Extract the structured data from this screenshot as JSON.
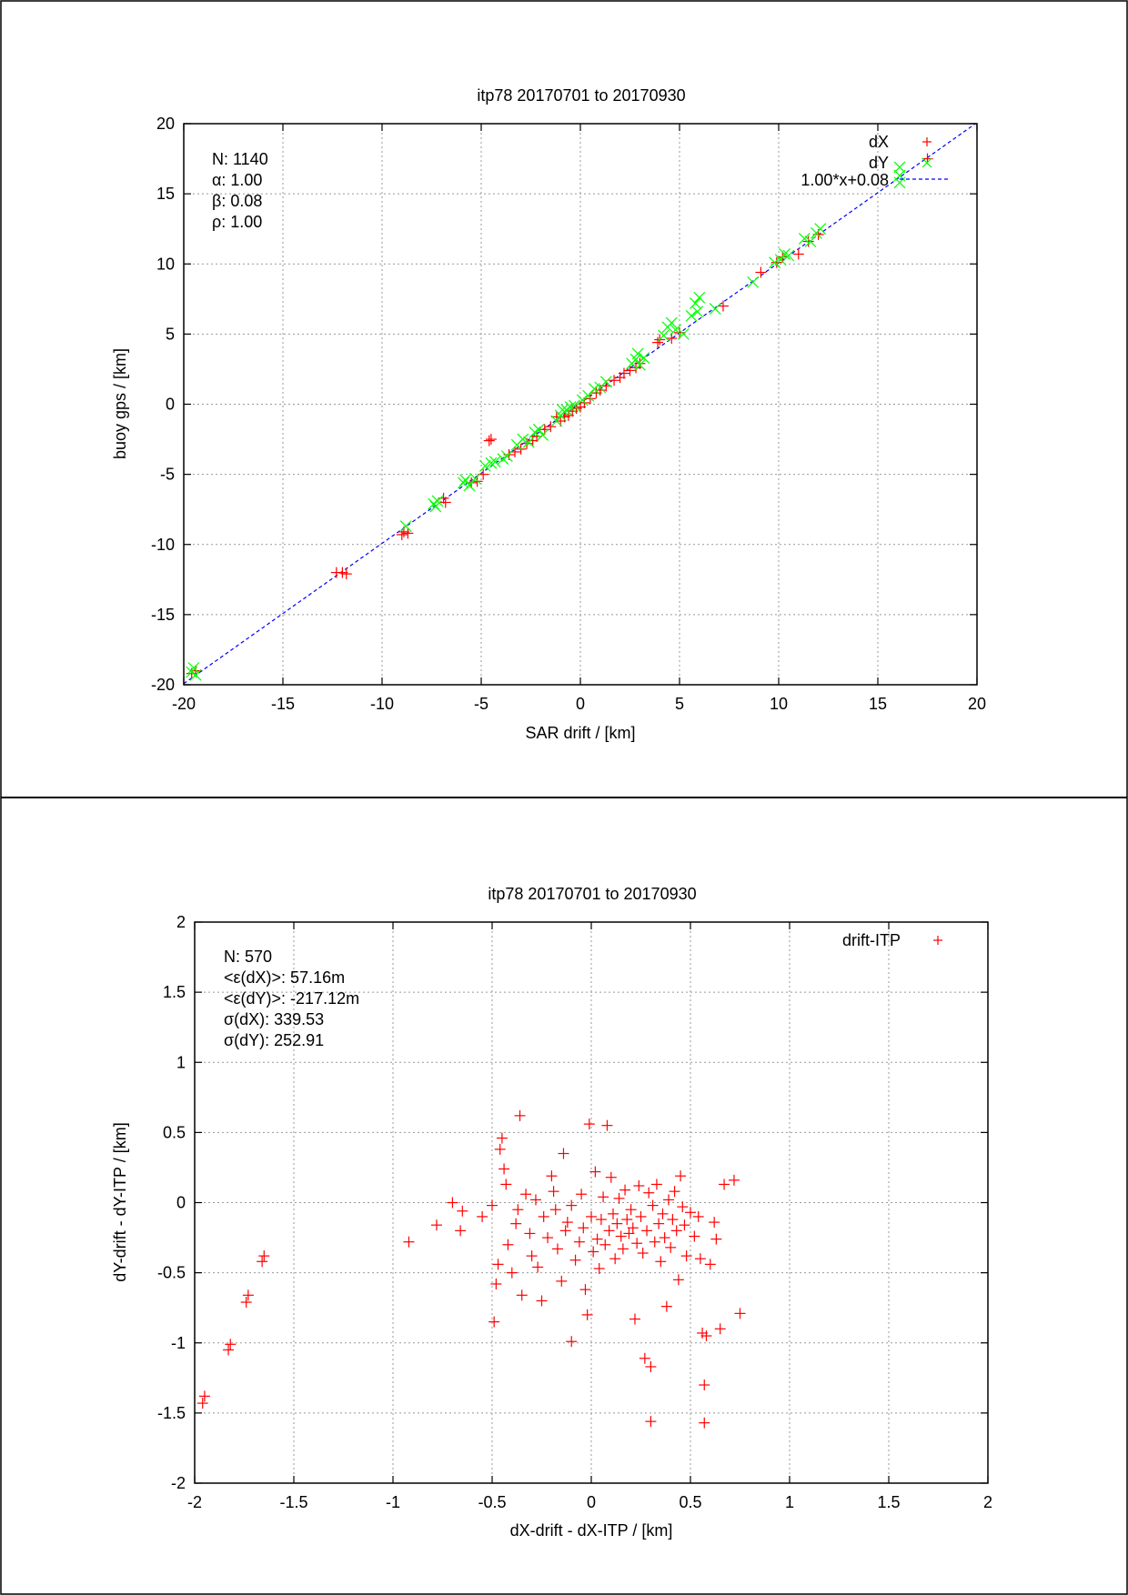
{
  "charts": [
    {
      "title": "itp78 20170701 to 20170930",
      "xlabel": "SAR drift / [km]",
      "ylabel": "buoy gps / [km]",
      "x_ticks": [
        "-20",
        "-15",
        "-10",
        "-5",
        "0",
        "5",
        "10",
        "15",
        "20"
      ],
      "y_ticks": [
        "-20",
        "-15",
        "-10",
        "-5",
        "0",
        "5",
        "10",
        "15",
        "20"
      ],
      "stats": [
        "N: 1140",
        "α: 1.00",
        "β: 0.08",
        "ρ: 1.00"
      ],
      "legend": [
        "dX",
        "dY",
        "1.00*x+0.08"
      ]
    },
    {
      "title": "itp78 20170701 to 20170930",
      "xlabel": "dX-drift - dX-ITP / [km]",
      "ylabel": "dY-drift - dY-ITP / [km]",
      "x_ticks": [
        "-2",
        "-1.5",
        "-1",
        "-0.5",
        "0",
        "0.5",
        "1",
        "1.5",
        "2"
      ],
      "y_ticks": [
        "-2",
        "-1.5",
        "-1",
        "-0.5",
        "0",
        "0.5",
        "1",
        "1.5",
        "2"
      ],
      "stats": [
        "N: 570",
        "<ε(dX)>:  57.16m",
        "<ε(dY)>: -217.12m",
        "σ(dX):  339.53",
        "σ(dY):  252.91"
      ],
      "legend": [
        "drift-ITP"
      ]
    }
  ],
  "chart_data": [
    {
      "type": "scatter",
      "title": "itp78 20170701 to 20170930",
      "xlabel": "SAR drift / [km]",
      "ylabel": "buoy gps / [km]",
      "xlim": [
        -20,
        20
      ],
      "ylim": [
        -20,
        20
      ],
      "grid": true,
      "legend_position": "top-right",
      "fit_line": {
        "name": "1.00*x+0.08",
        "slope": 1.0,
        "intercept": 0.08,
        "color": "#0000ff"
      },
      "series": [
        {
          "name": "dX",
          "marker": "+",
          "color": "#ff0000",
          "points": [
            [
              -19.6,
              -19.2
            ],
            [
              -19.4,
              -19.0
            ],
            [
              -12.3,
              -12.0
            ],
            [
              -12.0,
              -12.0
            ],
            [
              -11.8,
              -12.1
            ],
            [
              -9.0,
              -9.3
            ],
            [
              -8.9,
              -9.1
            ],
            [
              -8.7,
              -9.2
            ],
            [
              -6.9,
              -6.7
            ],
            [
              -6.8,
              -7.0
            ],
            [
              -5.5,
              -5.6
            ],
            [
              -5.2,
              -5.5
            ],
            [
              -4.9,
              -5.0
            ],
            [
              -4.6,
              -2.6
            ],
            [
              -4.5,
              -2.5
            ],
            [
              -3.6,
              -3.6
            ],
            [
              -3.3,
              -3.4
            ],
            [
              -3.0,
              -3.2
            ],
            [
              -2.7,
              -2.8
            ],
            [
              -2.4,
              -2.6
            ],
            [
              -2.2,
              -2.3
            ],
            [
              -1.8,
              -1.8
            ],
            [
              -1.5,
              -1.6
            ],
            [
              -1.2,
              -0.9
            ],
            [
              -1.0,
              -1.2
            ],
            [
              -0.8,
              -0.9
            ],
            [
              -0.6,
              -0.8
            ],
            [
              -0.4,
              -0.5
            ],
            [
              -0.2,
              -0.3
            ],
            [
              0.0,
              -0.2
            ],
            [
              0.2,
              0.1
            ],
            [
              0.5,
              0.4
            ],
            [
              0.8,
              0.8
            ],
            [
              1.0,
              1.0
            ],
            [
              1.3,
              1.3
            ],
            [
              1.7,
              1.7
            ],
            [
              2.0,
              1.9
            ],
            [
              2.2,
              2.2
            ],
            [
              2.5,
              2.4
            ],
            [
              2.8,
              2.6
            ],
            [
              3.0,
              2.9
            ],
            [
              3.9,
              4.4
            ],
            [
              4.0,
              4.6
            ],
            [
              4.6,
              4.7
            ],
            [
              5.0,
              5.1
            ],
            [
              7.2,
              7.0
            ],
            [
              9.1,
              9.4
            ],
            [
              9.9,
              10.1
            ],
            [
              10.2,
              10.5
            ],
            [
              11.0,
              10.7
            ],
            [
              11.5,
              11.6
            ],
            [
              12.0,
              12.1
            ],
            [
              17.5,
              17.5
            ]
          ]
        },
        {
          "name": "dY",
          "marker": "x",
          "color": "#00ff00",
          "points": [
            [
              -19.6,
              -19.1
            ],
            [
              -19.5,
              -18.8
            ],
            [
              -19.4,
              -19.3
            ],
            [
              -8.8,
              -8.7
            ],
            [
              -7.4,
              -7.1
            ],
            [
              -7.3,
              -7.3
            ],
            [
              -7.2,
              -6.9
            ],
            [
              -5.9,
              -5.6
            ],
            [
              -5.8,
              -5.4
            ],
            [
              -5.6,
              -5.8
            ],
            [
              -5.3,
              -5.3
            ],
            [
              -4.8,
              -4.4
            ],
            [
              -4.5,
              -4.2
            ],
            [
              -4.3,
              -4.1
            ],
            [
              -3.9,
              -3.9
            ],
            [
              -3.7,
              -3.7
            ],
            [
              -3.2,
              -2.9
            ],
            [
              -2.9,
              -2.5
            ],
            [
              -2.6,
              -2.7
            ],
            [
              -2.3,
              -2.0
            ],
            [
              -2.1,
              -1.8
            ],
            [
              -1.9,
              -2.2
            ],
            [
              -1.2,
              -1.2
            ],
            [
              -1.0,
              -0.8
            ],
            [
              -0.9,
              -0.4
            ],
            [
              -0.7,
              -0.4
            ],
            [
              -0.5,
              -0.2
            ],
            [
              -0.3,
              -0.1
            ],
            [
              0.1,
              0.3
            ],
            [
              0.4,
              0.6
            ],
            [
              0.7,
              1.1
            ],
            [
              1.0,
              1.2
            ],
            [
              1.3,
              1.6
            ],
            [
              2.6,
              2.9
            ],
            [
              2.8,
              3.2
            ],
            [
              2.9,
              3.6
            ],
            [
              3.0,
              2.8
            ],
            [
              3.2,
              3.3
            ],
            [
              4.2,
              4.9
            ],
            [
              4.4,
              5.5
            ],
            [
              4.6,
              5.8
            ],
            [
              4.8,
              5.3
            ],
            [
              5.2,
              5.0
            ],
            [
              5.6,
              6.3
            ],
            [
              5.8,
              7.2
            ],
            [
              6.0,
              7.6
            ],
            [
              5.9,
              6.6
            ],
            [
              6.8,
              6.8
            ],
            [
              8.7,
              8.7
            ],
            [
              9.8,
              10.1
            ],
            [
              10.1,
              10.3
            ],
            [
              10.3,
              10.7
            ],
            [
              10.5,
              10.6
            ],
            [
              11.3,
              11.8
            ],
            [
              11.6,
              11.6
            ],
            [
              11.9,
              12.2
            ],
            [
              12.1,
              12.5
            ],
            [
              16.1,
              16.9
            ],
            [
              16.1,
              16.3
            ],
            [
              16.1,
              15.8
            ]
          ]
        }
      ]
    },
    {
      "type": "scatter",
      "title": "itp78 20170701 to 20170930",
      "xlabel": "dX-drift - dX-ITP / [km]",
      "ylabel": "dY-drift - dY-ITP / [km]",
      "xlim": [
        -2,
        2
      ],
      "ylim": [
        -2,
        2
      ],
      "grid": true,
      "legend_position": "top-right",
      "series": [
        {
          "name": "drift-ITP",
          "marker": "+",
          "color": "#ff0000",
          "points": [
            [
              -1.95,
              -1.38
            ],
            [
              -1.96,
              -1.43
            ],
            [
              -1.82,
              -1.01
            ],
            [
              -1.83,
              -1.05
            ],
            [
              -1.73,
              -0.66
            ],
            [
              -1.74,
              -0.71
            ],
            [
              -1.65,
              -0.38
            ],
            [
              -1.66,
              -0.42
            ],
            [
              -0.92,
              -0.28
            ],
            [
              -0.78,
              -0.16
            ],
            [
              -0.7,
              0.0
            ],
            [
              -0.65,
              -0.06
            ],
            [
              -0.66,
              -0.2
            ],
            [
              -0.55,
              -0.1
            ],
            [
              -0.5,
              -0.02
            ],
            [
              -0.49,
              -0.85
            ],
            [
              -0.48,
              -0.58
            ],
            [
              -0.47,
              -0.44
            ],
            [
              -0.46,
              0.38
            ],
            [
              -0.45,
              0.46
            ],
            [
              -0.44,
              0.24
            ],
            [
              -0.43,
              0.13
            ],
            [
              -0.42,
              -0.3
            ],
            [
              -0.4,
              -0.5
            ],
            [
              -0.38,
              -0.15
            ],
            [
              -0.37,
              -0.05
            ],
            [
              -0.36,
              0.62
            ],
            [
              -0.35,
              -0.66
            ],
            [
              -0.33,
              0.06
            ],
            [
              -0.31,
              -0.22
            ],
            [
              -0.3,
              -0.38
            ],
            [
              -0.28,
              0.02
            ],
            [
              -0.27,
              -0.46
            ],
            [
              -0.25,
              -0.7
            ],
            [
              -0.24,
              -0.1
            ],
            [
              -0.22,
              -0.25
            ],
            [
              -0.2,
              0.19
            ],
            [
              -0.19,
              0.08
            ],
            [
              -0.18,
              -0.05
            ],
            [
              -0.17,
              -0.33
            ],
            [
              -0.15,
              -0.56
            ],
            [
              -0.14,
              0.35
            ],
            [
              -0.13,
              -0.2
            ],
            [
              -0.12,
              -0.14
            ],
            [
              -0.1,
              -0.99
            ],
            [
              -0.1,
              -0.02
            ],
            [
              -0.08,
              -0.41
            ],
            [
              -0.06,
              -0.28
            ],
            [
              -0.05,
              0.06
            ],
            [
              -0.04,
              -0.18
            ],
            [
              -0.03,
              -0.62
            ],
            [
              -0.02,
              -0.8
            ],
            [
              -0.01,
              0.56
            ],
            [
              0.0,
              -0.1
            ],
            [
              0.01,
              -0.35
            ],
            [
              0.02,
              0.22
            ],
            [
              0.03,
              -0.26
            ],
            [
              0.04,
              -0.47
            ],
            [
              0.05,
              -0.12
            ],
            [
              0.06,
              0.04
            ],
            [
              0.07,
              -0.3
            ],
            [
              0.08,
              0.55
            ],
            [
              0.09,
              -0.2
            ],
            [
              0.1,
              0.18
            ],
            [
              0.11,
              -0.08
            ],
            [
              0.12,
              -0.4
            ],
            [
              0.13,
              -0.15
            ],
            [
              0.14,
              0.03
            ],
            [
              0.15,
              -0.24
            ],
            [
              0.16,
              -0.33
            ],
            [
              0.17,
              0.09
            ],
            [
              0.18,
              -0.12
            ],
            [
              0.19,
              -0.22
            ],
            [
              0.2,
              -0.05
            ],
            [
              0.21,
              -0.18
            ],
            [
              0.22,
              -0.83
            ],
            [
              0.23,
              -0.29
            ],
            [
              0.24,
              0.12
            ],
            [
              0.25,
              -0.1
            ],
            [
              0.26,
              -0.36
            ],
            [
              0.27,
              -1.11
            ],
            [
              0.28,
              -0.2
            ],
            [
              0.29,
              0.07
            ],
            [
              0.3,
              -1.17
            ],
            [
              0.3,
              -1.56
            ],
            [
              0.31,
              -0.02
            ],
            [
              0.32,
              -0.28
            ],
            [
              0.33,
              0.13
            ],
            [
              0.34,
              -0.15
            ],
            [
              0.35,
              -0.42
            ],
            [
              0.36,
              -0.08
            ],
            [
              0.37,
              -0.25
            ],
            [
              0.38,
              -0.74
            ],
            [
              0.39,
              0.02
            ],
            [
              0.4,
              -0.32
            ],
            [
              0.41,
              -0.12
            ],
            [
              0.42,
              0.08
            ],
            [
              0.43,
              -0.2
            ],
            [
              0.44,
              -0.55
            ],
            [
              0.45,
              0.19
            ],
            [
              0.46,
              -0.03
            ],
            [
              0.47,
              -0.16
            ],
            [
              0.48,
              -0.38
            ],
            [
              0.5,
              -0.07
            ],
            [
              0.52,
              -0.24
            ],
            [
              0.54,
              -0.1
            ],
            [
              0.55,
              -0.4
            ],
            [
              0.56,
              -0.93
            ],
            [
              0.57,
              -1.3
            ],
            [
              0.57,
              -1.57
            ],
            [
              0.58,
              -0.95
            ],
            [
              0.6,
              -0.44
            ],
            [
              0.62,
              -0.14
            ],
            [
              0.63,
              -0.26
            ],
            [
              0.65,
              -0.9
            ],
            [
              0.67,
              0.13
            ],
            [
              0.72,
              0.16
            ],
            [
              0.75,
              -0.79
            ]
          ]
        }
      ]
    }
  ]
}
